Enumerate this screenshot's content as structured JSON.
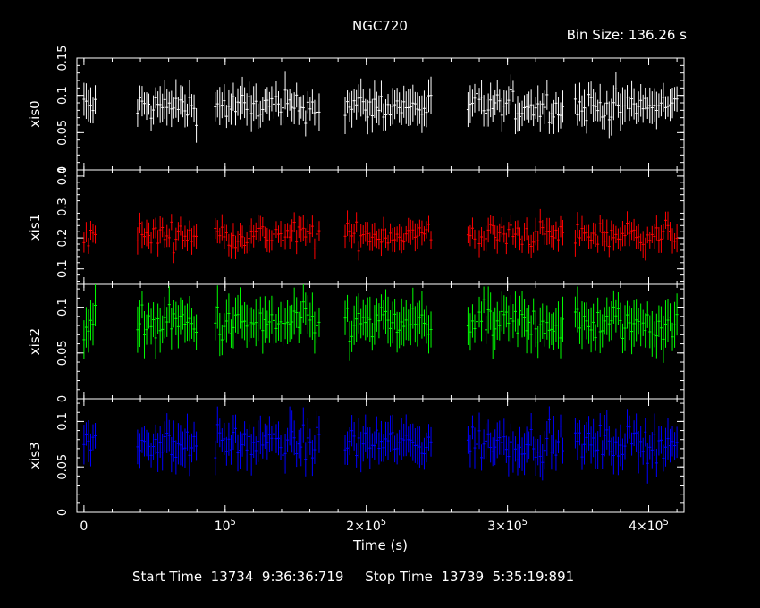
{
  "header": {
    "title": "NGC720",
    "bin_size": "Bin Size: 136.26 s"
  },
  "footer": {
    "start_label": "Start Time",
    "start_value": "13734  9:36:36:719",
    "stop_label": "Stop Time",
    "stop_value": "13739  5:35:19:891"
  },
  "chart_data": {
    "type": "scatter",
    "xlabel": "Time (s)",
    "xlim": [
      -5000,
      425000
    ],
    "x_ticks": [
      {
        "value": 0,
        "label": "0"
      },
      {
        "value": 100000,
        "label": "10^5"
      },
      {
        "value": 200000,
        "label": "2×10^5"
      },
      {
        "value": 300000,
        "label": "3×10^5"
      },
      {
        "value": 400000,
        "label": "4×10^5"
      }
    ],
    "good_time_intervals": [
      [
        0,
        9000
      ],
      [
        38000,
        80000
      ],
      [
        93000,
        168000
      ],
      [
        185000,
        247000
      ],
      [
        272000,
        340000
      ],
      [
        348000,
        420000
      ]
    ],
    "panels": [
      {
        "name": "xis0",
        "ylabel": "xis0",
        "color": "#ffffff",
        "ylim": [
          0,
          0.15
        ],
        "yticks": [
          0,
          0.05,
          0.1,
          0.15
        ],
        "ytick_labels": [
          "0",
          "0.05",
          "0.1",
          "0.15"
        ],
        "mean": 0.085,
        "scatter": 0.012,
        "error": 0.02
      },
      {
        "name": "xis1",
        "ylabel": "xis1",
        "color": "#ff0000",
        "ylim": [
          0.05,
          0.42
        ],
        "yticks": [
          0.1,
          0.2,
          0.3,
          0.4
        ],
        "ytick_labels": [
          "0.1",
          "0.2",
          "0.3",
          "0.4"
        ],
        "mean": 0.21,
        "scatter": 0.025,
        "error": 0.035
      },
      {
        "name": "xis2",
        "ylabel": "xis2",
        "color": "#00ff00",
        "ylim": [
          0,
          0.125
        ],
        "yticks": [
          0,
          0.05,
          0.1
        ],
        "ytick_labels": [
          "0",
          "0.05",
          "0.1"
        ],
        "mean": 0.082,
        "scatter": 0.012,
        "error": 0.02
      },
      {
        "name": "xis3",
        "ylabel": "xis3",
        "color": "#0000ff",
        "ylim": [
          0,
          0.125
        ],
        "yticks": [
          0,
          0.05,
          0.1
        ],
        "ytick_labels": [
          "0",
          "0.05",
          "0.1"
        ],
        "mean": 0.076,
        "scatter": 0.011,
        "error": 0.018
      }
    ]
  }
}
